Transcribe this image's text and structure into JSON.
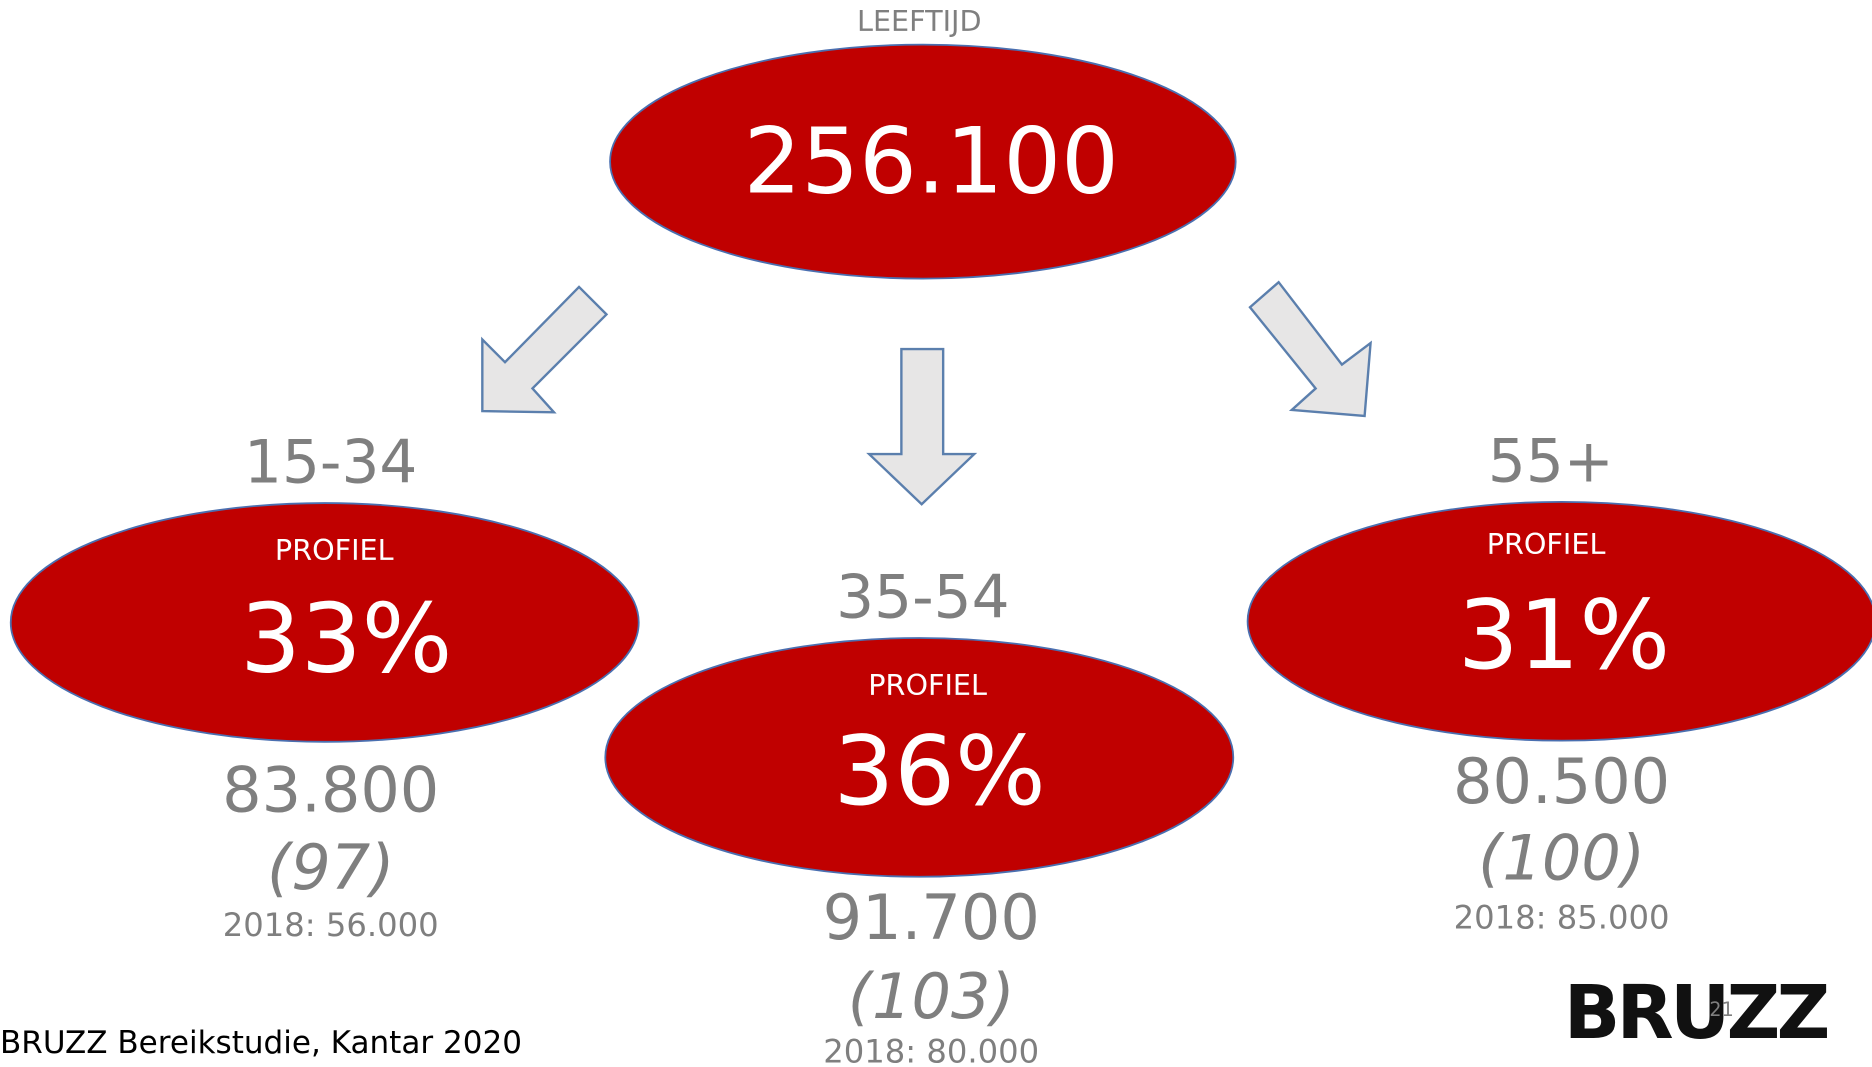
{
  "title": "LEEFTIJD",
  "total": "256.100",
  "groups": [
    {
      "label": "15-34",
      "profile_label": "PROFIEL",
      "profile": "33%",
      "count": "83.800",
      "index": "(97)",
      "previous": "2018: 56.000"
    },
    {
      "label": "35-54",
      "profile_label": "PROFIEL",
      "profile": "36%",
      "count": "91.700",
      "index": "(103)",
      "previous": "2018: 80.000"
    },
    {
      "label": "55+",
      "profile_label": "PROFIEL",
      "profile": "31%",
      "count": "80.500",
      "index": "(100)",
      "previous": "2018: 85.000"
    }
  ],
  "footer": {
    "source": "BRUZZ Bereikstudie, Kantar 2020",
    "logo": "BRUZZ",
    "page_number": "21"
  }
}
